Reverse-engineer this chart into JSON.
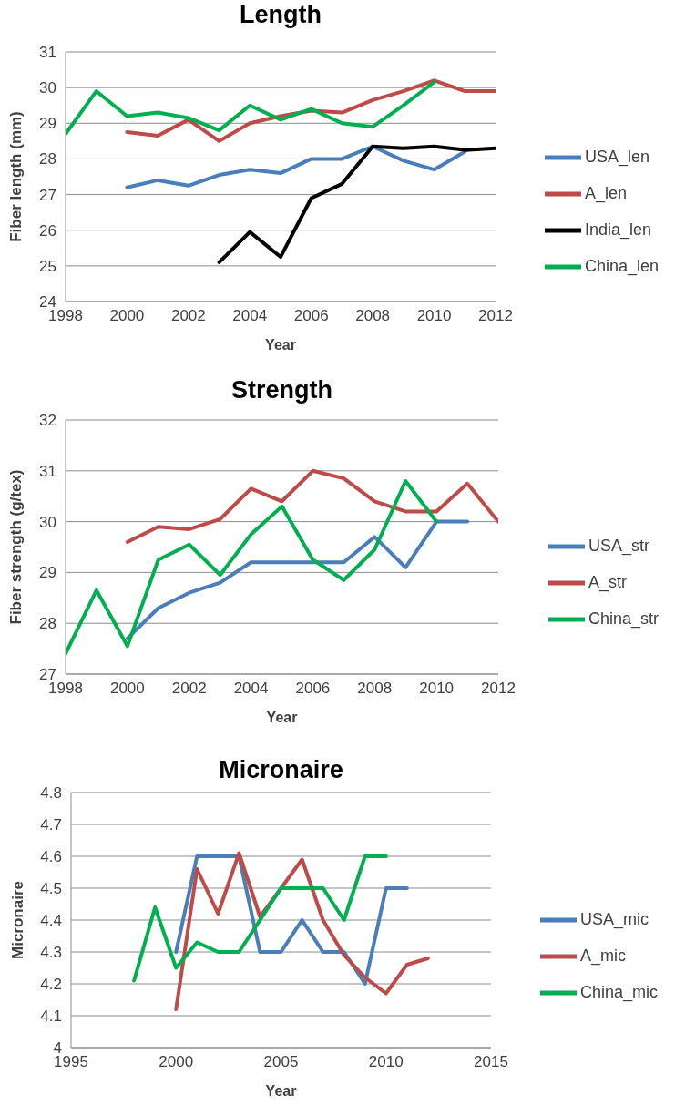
{
  "chart_data": [
    {
      "type": "line",
      "title": "Length",
      "xlabel": "Year",
      "ylabel": "Fiber length (mm)",
      "x": [
        1998,
        1999,
        2000,
        2001,
        2002,
        2003,
        2004,
        2005,
        2006,
        2007,
        2008,
        2009,
        2010,
        2011,
        2012
      ],
      "xlim": [
        1998,
        2012
      ],
      "xticks": [
        1998,
        2000,
        2002,
        2004,
        2006,
        2008,
        2010,
        2012
      ],
      "ylim": [
        24,
        31
      ],
      "yticks": [
        24,
        25,
        26,
        27,
        28,
        29,
        30,
        31
      ],
      "grid": "y",
      "legend": "right",
      "marker": "none",
      "line_style": "solid",
      "series": [
        {
          "name": "USA_len",
          "color": "#4a7ebb",
          "values": [
            null,
            null,
            27.2,
            27.4,
            27.25,
            27.55,
            27.7,
            27.6,
            28.0,
            28.0,
            28.35,
            27.95,
            27.7,
            28.2,
            null
          ]
        },
        {
          "name": "A_len",
          "color": "#be4b48",
          "values": [
            null,
            null,
            28.75,
            28.65,
            29.1,
            28.5,
            29.0,
            29.2,
            29.35,
            29.3,
            29.65,
            29.9,
            30.2,
            29.9,
            29.9
          ]
        },
        {
          "name": "India_len",
          "color": "#000000",
          "values": [
            null,
            null,
            null,
            null,
            null,
            25.1,
            25.95,
            25.25,
            26.9,
            27.3,
            28.35,
            28.3,
            28.35,
            28.25,
            28.3
          ]
        },
        {
          "name": "China_len",
          "color": "#00b050",
          "values": [
            28.7,
            29.9,
            29.2,
            29.3,
            29.15,
            28.8,
            29.5,
            29.1,
            29.4,
            29.0,
            28.9,
            29.5,
            30.15,
            null,
            null
          ]
        }
      ]
    },
    {
      "type": "line",
      "title": "Strength",
      "xlabel": "Year",
      "ylabel": "Fiber strength (g/tex)",
      "x": [
        1998,
        1999,
        2000,
        2001,
        2002,
        2003,
        2004,
        2005,
        2006,
        2007,
        2008,
        2009,
        2010,
        2011,
        2012
      ],
      "xlim": [
        1998,
        2012
      ],
      "xticks": [
        1998,
        2000,
        2002,
        2004,
        2006,
        2008,
        2010,
        2012
      ],
      "ylim": [
        27,
        32
      ],
      "yticks": [
        27,
        28,
        29,
        30,
        31,
        32
      ],
      "grid": "y",
      "legend": "right",
      "marker": "none",
      "line_style": "solid",
      "series": [
        {
          "name": "USA_str",
          "color": "#4a7ebb",
          "values": [
            null,
            null,
            27.7,
            28.3,
            28.6,
            28.8,
            29.2,
            29.2,
            29.2,
            29.2,
            29.7,
            29.1,
            30.0,
            30.0,
            null
          ]
        },
        {
          "name": "A_str",
          "color": "#be4b48",
          "values": [
            null,
            null,
            29.6,
            29.9,
            29.85,
            30.05,
            30.65,
            30.4,
            31.0,
            30.85,
            30.4,
            30.2,
            30.2,
            30.75,
            30.0
          ]
        },
        {
          "name": "China_str",
          "color": "#00b050",
          "values": [
            27.4,
            28.65,
            27.55,
            29.25,
            29.55,
            28.95,
            29.75,
            30.3,
            29.25,
            28.85,
            29.45,
            30.8,
            30.0,
            null,
            null
          ]
        }
      ]
    },
    {
      "type": "line",
      "title": "Micronaire",
      "xlabel": "Year",
      "ylabel": "Micronaire",
      "x": [
        1998,
        1999,
        2000,
        2001,
        2002,
        2003,
        2004,
        2005,
        2006,
        2007,
        2008,
        2009,
        2010,
        2011,
        2012
      ],
      "xlim": [
        1995,
        2015
      ],
      "xticks": [
        1995,
        2000,
        2005,
        2010,
        2015
      ],
      "ylim": [
        4,
        4.8
      ],
      "yticks": [
        4,
        4.1,
        4.2,
        4.3,
        4.4,
        4.5,
        4.6,
        4.7,
        4.8
      ],
      "grid": "y",
      "legend": "right",
      "marker": "none",
      "line_style": "solid",
      "series": [
        {
          "name": "USA_mic",
          "color": "#4a7ebb",
          "values": [
            null,
            null,
            4.3,
            4.6,
            4.6,
            4.6,
            4.3,
            4.3,
            4.4,
            4.3,
            4.3,
            4.2,
            4.5,
            4.5,
            null
          ]
        },
        {
          "name": "A_mic",
          "color": "#be4b48",
          "values": [
            null,
            null,
            4.12,
            4.56,
            4.42,
            4.61,
            4.41,
            4.5,
            4.59,
            4.4,
            4.29,
            4.22,
            4.17,
            4.26,
            4.28
          ]
        },
        {
          "name": "China_mic",
          "color": "#00b050",
          "values": [
            4.21,
            4.44,
            4.25,
            4.33,
            4.3,
            4.3,
            4.4,
            4.5,
            4.5,
            4.5,
            4.4,
            4.6,
            4.6,
            null,
            null
          ]
        }
      ]
    }
  ]
}
